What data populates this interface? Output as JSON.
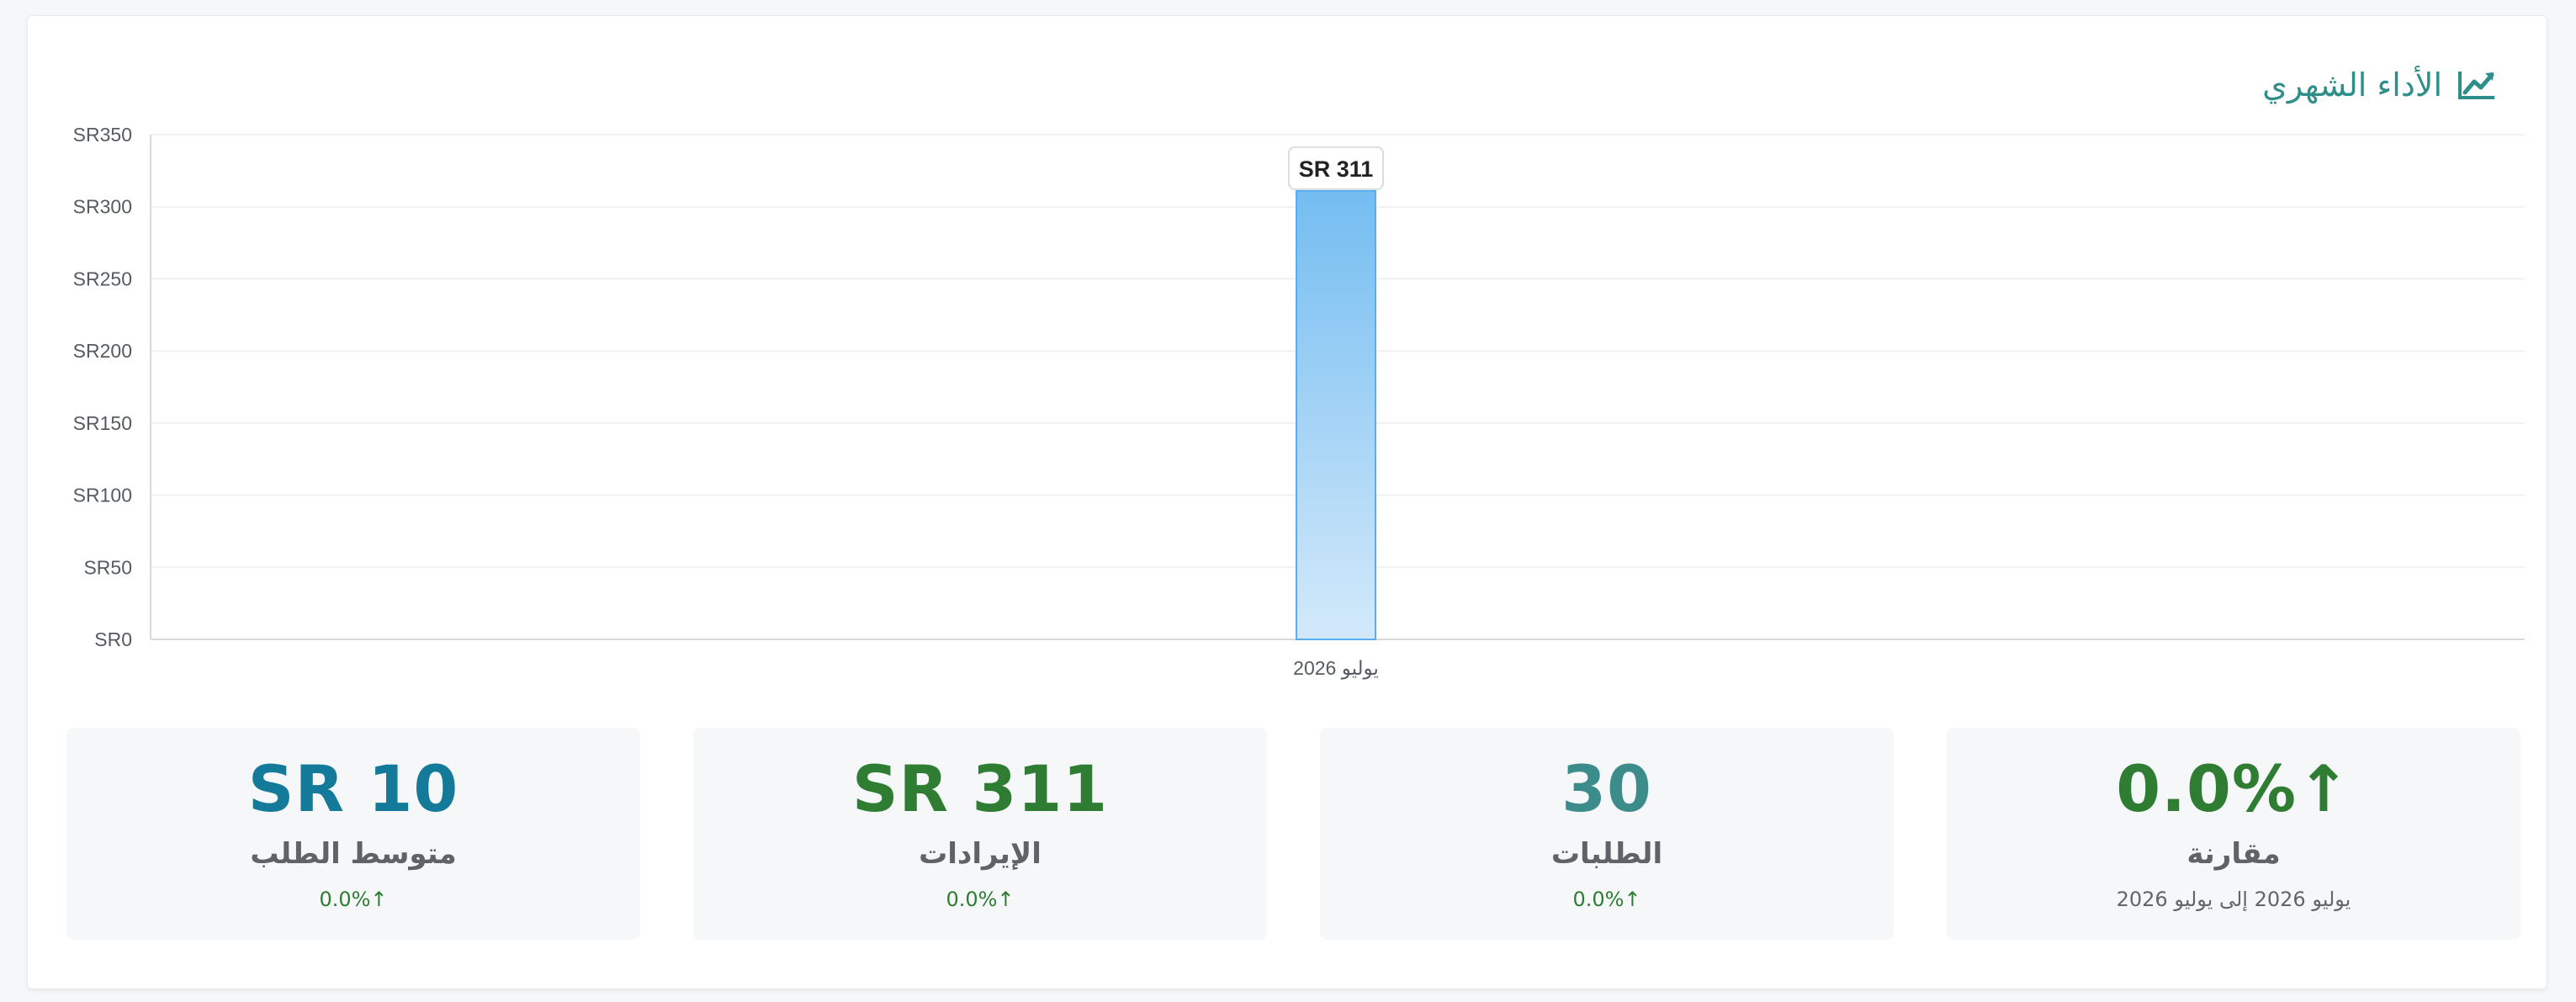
{
  "header": {
    "title": "الأداء الشهري",
    "icon": "chart-line-icon"
  },
  "chart_data": {
    "type": "bar",
    "categories": [
      "يوليو 2026"
    ],
    "values": [
      311
    ],
    "title": "",
    "xlabel": "",
    "ylabel": "",
    "ylim": [
      0,
      350
    ],
    "y_ticks": [
      "SR0",
      "SR50",
      "SR100",
      "SR150",
      "SR200",
      "SR250",
      "SR300",
      "SR350"
    ],
    "tooltip": "SR 311",
    "grid": true,
    "legend": "none",
    "bar_color": "#74bdf1"
  },
  "stats": {
    "avg_order": {
      "value": "SR 10",
      "label": "متوسط الطلب",
      "change": "0.0%↑",
      "color": "#137a99"
    },
    "revenue": {
      "value": "SR 311",
      "label": "الإيرادات",
      "change": "0.0%↑",
      "color": "#2e7d32"
    },
    "orders": {
      "value": "30",
      "label": "الطلبات",
      "change": "0.0%↑",
      "color": "#3b8c8a"
    },
    "comparison": {
      "value": "0.0%↑",
      "label": "مقارنة",
      "period": "يوليو 2026 إلى يوليو 2026",
      "color": "#2e7d32"
    }
  }
}
